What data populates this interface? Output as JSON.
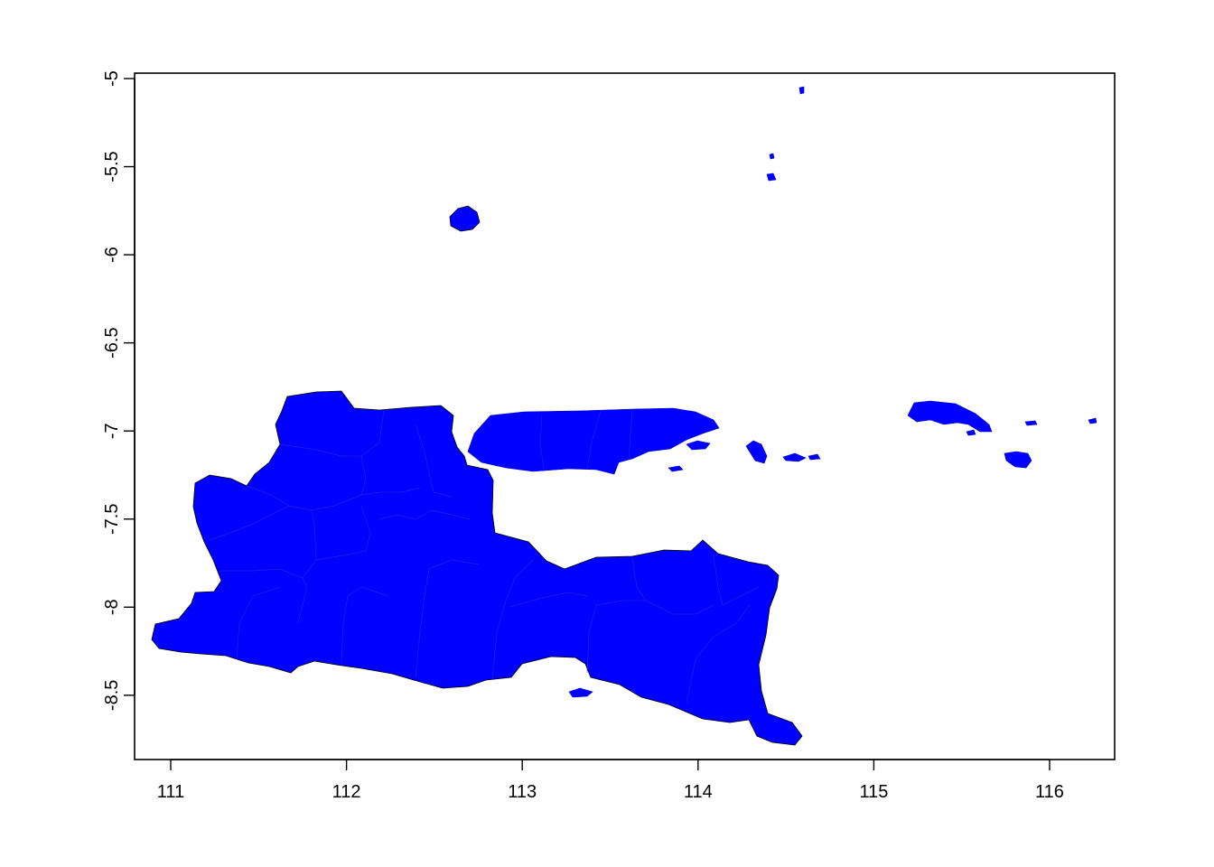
{
  "map": {
    "land_color": "#0000ff",
    "x_axis": {
      "ticks": [
        {
          "value": 111,
          "label": "111"
        },
        {
          "value": 112,
          "label": "112"
        },
        {
          "value": 113,
          "label": "113"
        },
        {
          "value": 114,
          "label": "114"
        },
        {
          "value": 115,
          "label": "115"
        },
        {
          "value": 116,
          "label": "116"
        }
      ]
    },
    "y_axis": {
      "ticks": [
        {
          "value": -5,
          "label": "-5"
        },
        {
          "value": -5.5,
          "label": "-5.5"
        },
        {
          "value": -6,
          "label": "-6"
        },
        {
          "value": -6.5,
          "label": "-6.5"
        },
        {
          "value": -7,
          "label": "-7"
        },
        {
          "value": -7.5,
          "label": "-7.5"
        },
        {
          "value": -8,
          "label": "-8"
        },
        {
          "value": -8.5,
          "label": "-8.5"
        }
      ]
    },
    "xlim": [
      110.8,
      116.4
    ],
    "ylim": [
      -8.88,
      -4.97
    ]
  }
}
